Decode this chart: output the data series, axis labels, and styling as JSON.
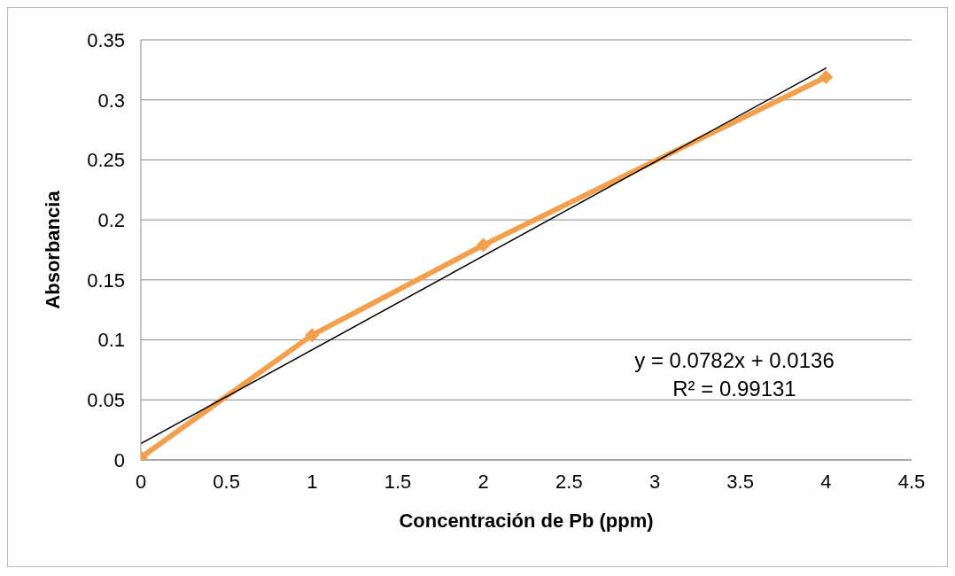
{
  "chart_data": {
    "type": "line",
    "xlabel": "Concentración de Pb (ppm)",
    "ylabel": "Absorbancia",
    "x": [
      0,
      1,
      2,
      4
    ],
    "series": [
      {
        "color": "#f2a04e",
        "values": [
          0.002,
          0.104,
          0.179,
          0.319
        ],
        "marker": "diamond"
      },
      {
        "type": "line",
        "x": [
          0,
          4
        ],
        "color": "#000000",
        "values": [
          0.0136,
          0.3264
        ],
        "marker": "none"
      }
    ],
    "xlim": [
      0,
      4.5
    ],
    "xticks": [
      0,
      0.5,
      1,
      1.5,
      2,
      2.5,
      3,
      3.5,
      4,
      4.5
    ],
    "ylim": [
      0,
      0.35
    ],
    "yticks": [
      0,
      0.05,
      0.1,
      0.15,
      0.2,
      0.25,
      0.3,
      0.35
    ],
    "grid": "y",
    "line_style": "solid",
    "annotations": [
      "y = 0.0782x + 0.0136",
      "R² = 0.99131"
    ]
  }
}
